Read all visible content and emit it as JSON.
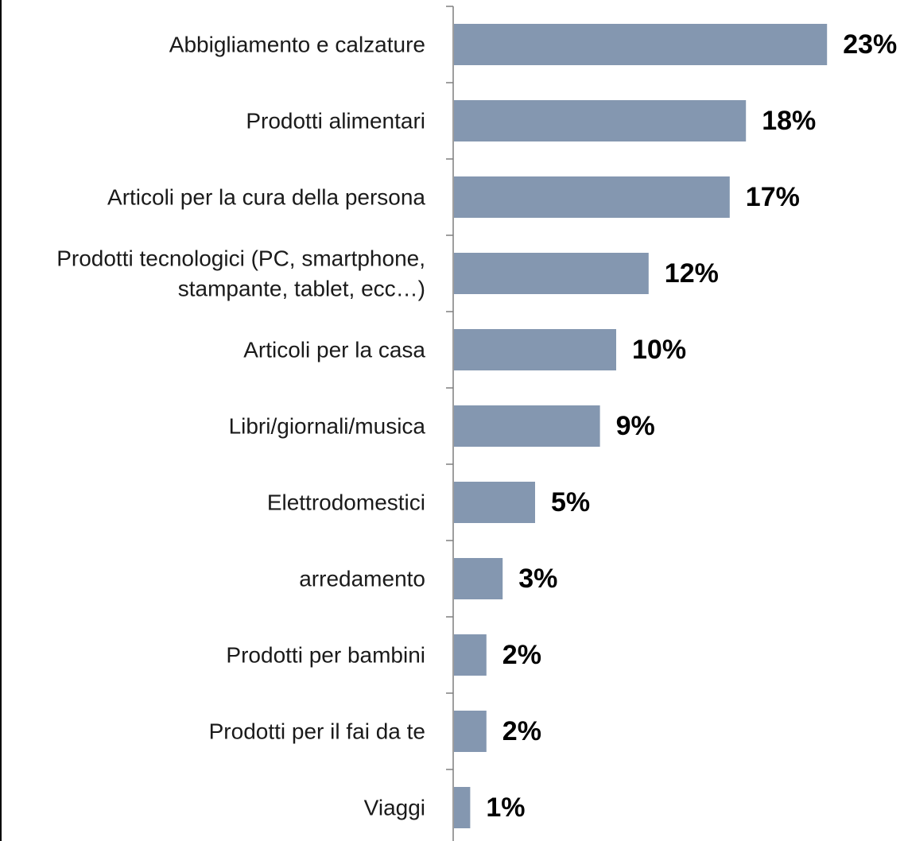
{
  "chart_data": {
    "type": "bar",
    "orientation": "horizontal",
    "categories": [
      [
        "Abbigliamento e calzature"
      ],
      [
        "Prodotti alimentari"
      ],
      [
        "Articoli per la cura della persona"
      ],
      [
        "Prodotti tecnologici (PC, smartphone,",
        "stampante, tablet, ecc…)"
      ],
      [
        "Articoli per la casa"
      ],
      [
        "Libri/giornali/musica"
      ],
      [
        "Elettrodomestici"
      ],
      [
        "arredamento"
      ],
      [
        "Prodotti per bambini"
      ],
      [
        "Prodotti per il fai da te"
      ],
      [
        "Viaggi"
      ]
    ],
    "values": [
      23,
      18,
      17,
      12,
      10,
      9,
      5,
      3,
      2,
      2,
      1
    ],
    "data_labels": [
      "23%",
      "18%",
      "17%",
      "12%",
      "10%",
      "9%",
      "5%",
      "3%",
      "2%",
      "2%",
      "1%"
    ],
    "xlim": [
      0,
      24
    ],
    "grid": false,
    "legend": "none",
    "bar_color": "#8497b0"
  }
}
